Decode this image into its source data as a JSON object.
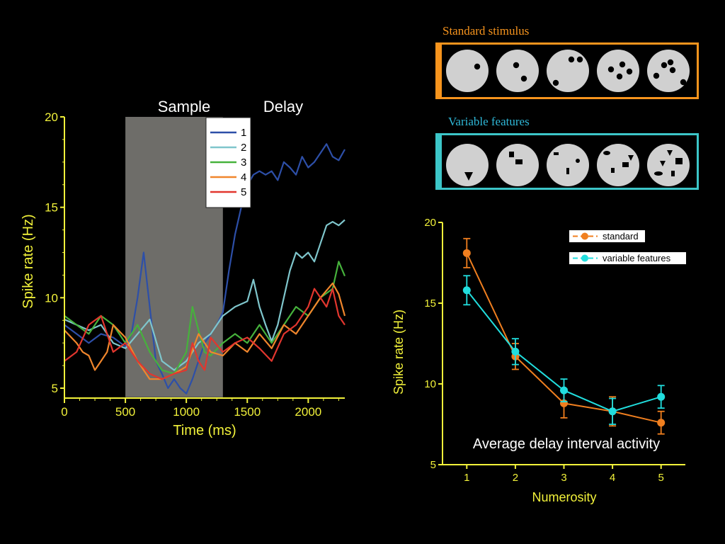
{
  "panels": {
    "standard": {
      "title": "Standard stimulus",
      "border_color": "#f7941d",
      "title_color": "#f7941d"
    },
    "variable": {
      "title": "Variable features",
      "border_color": "#3cc6c8",
      "title_color": "#2fb8d8"
    },
    "disc_color": "#d0d0d0"
  },
  "chart_data": [
    {
      "type": "line",
      "xlabel": "Time (ms)",
      "ylabel": "Spike rate (Hz)",
      "xlim": [
        0,
        2300
      ],
      "ylim": [
        4.5,
        20
      ],
      "xticks": [
        0,
        500,
        1000,
        1500,
        2000
      ],
      "yticks": [
        5,
        10,
        15,
        20
      ],
      "axis_color": "#f2f23a",
      "epochs": [
        {
          "label": "Sample",
          "start": 500,
          "end": 1300,
          "shaded": true,
          "shade_color": "#6e6d69"
        },
        {
          "label": "Delay",
          "start": 1300,
          "end": 2300,
          "shaded": false
        }
      ],
      "legend_position": "top-left-inside",
      "series": [
        {
          "name": "1",
          "color": "#2d4fa8",
          "x": [
            0,
            100,
            200,
            300,
            400,
            500,
            550,
            600,
            650,
            700,
            750,
            800,
            850,
            900,
            950,
            1000,
            1050,
            1100,
            1150,
            1200,
            1250,
            1300,
            1350,
            1400,
            1450,
            1500,
            1550,
            1600,
            1650,
            1700,
            1750,
            1800,
            1850,
            1900,
            1950,
            2000,
            2050,
            2100,
            2150,
            2200,
            2250,
            2300
          ],
          "y": [
            8.5,
            8.0,
            7.5,
            8.0,
            7.8,
            7.3,
            8.0,
            10.0,
            12.5,
            9.5,
            6.5,
            5.8,
            5.0,
            5.5,
            5.0,
            4.7,
            5.5,
            6.5,
            7.5,
            8.0,
            8.5,
            9.2,
            11.5,
            13.5,
            15.0,
            16.2,
            16.8,
            17.0,
            16.8,
            17.0,
            16.5,
            17.5,
            17.2,
            16.8,
            17.8,
            17.2,
            17.5,
            18.0,
            18.5,
            17.8,
            17.6,
            18.2
          ]
        },
        {
          "name": "2",
          "color": "#7fc6cc",
          "x": [
            0,
            100,
            200,
            300,
            400,
            500,
            600,
            700,
            800,
            900,
            1000,
            1100,
            1200,
            1300,
            1400,
            1500,
            1550,
            1600,
            1650,
            1700,
            1750,
            1800,
            1850,
            1900,
            1950,
            2000,
            2050,
            2100,
            2150,
            2200,
            2250,
            2300
          ],
          "y": [
            8.8,
            8.5,
            8.2,
            8.5,
            7.5,
            7.2,
            8.0,
            8.8,
            6.5,
            6.0,
            6.5,
            7.5,
            8.0,
            9.0,
            9.5,
            9.8,
            11.0,
            9.5,
            8.5,
            7.6,
            8.5,
            10.0,
            11.5,
            12.5,
            12.2,
            12.5,
            12.0,
            13.0,
            14.0,
            14.2,
            14.0,
            14.3
          ]
        },
        {
          "name": "3",
          "color": "#46b23c",
          "x": [
            0,
            100,
            200,
            300,
            400,
            500,
            600,
            700,
            800,
            900,
            1000,
            1050,
            1100,
            1150,
            1200,
            1300,
            1400,
            1500,
            1600,
            1700,
            1800,
            1900,
            2000,
            2100,
            2200,
            2250,
            2300
          ],
          "y": [
            9.0,
            8.5,
            8.0,
            9.0,
            8.5,
            7.5,
            8.5,
            7.0,
            6.0,
            5.8,
            7.0,
            9.5,
            8.2,
            7.0,
            6.8,
            7.5,
            8.0,
            7.5,
            8.5,
            7.5,
            8.5,
            9.5,
            9.0,
            10.0,
            10.5,
            12.0,
            11.2
          ]
        },
        {
          "name": "4",
          "color": "#f0862c",
          "x": [
            0,
            100,
            150,
            200,
            250,
            300,
            350,
            400,
            500,
            600,
            700,
            800,
            900,
            1000,
            1100,
            1200,
            1300,
            1400,
            1500,
            1600,
            1700,
            1800,
            1900,
            2000,
            2100,
            2200,
            2250,
            2300
          ],
          "y": [
            8.2,
            7.5,
            7.0,
            6.8,
            6.0,
            6.5,
            7.0,
            8.5,
            7.8,
            6.5,
            5.5,
            5.5,
            5.8,
            6.2,
            8.0,
            7.0,
            6.8,
            7.5,
            7.0,
            8.0,
            7.2,
            8.5,
            8.0,
            9.0,
            10.0,
            10.8,
            10.2,
            9.0
          ]
        },
        {
          "name": "5",
          "color": "#e2362e",
          "x": [
            0,
            100,
            200,
            300,
            400,
            500,
            600,
            700,
            800,
            900,
            1000,
            1050,
            1100,
            1150,
            1200,
            1300,
            1400,
            1500,
            1600,
            1700,
            1800,
            1900,
            2000,
            2050,
            2100,
            2150,
            2200,
            2250,
            2300
          ],
          "y": [
            6.5,
            7.0,
            8.5,
            9.0,
            7.0,
            7.5,
            6.5,
            5.8,
            5.5,
            5.8,
            6.0,
            7.5,
            6.5,
            6.0,
            7.8,
            7.0,
            7.5,
            7.8,
            7.2,
            6.5,
            8.0,
            8.5,
            9.5,
            10.5,
            10.0,
            9.5,
            10.5,
            9.0,
            8.5
          ]
        }
      ]
    },
    {
      "type": "line",
      "title": "Average delay interval activity",
      "xlabel": "Numerosity",
      "ylabel": "Spike rate (Hz)",
      "xlim": [
        0.5,
        5.5
      ],
      "ylim": [
        5,
        20
      ],
      "xticks": [
        1,
        2,
        3,
        4,
        5
      ],
      "yticks": [
        5,
        10,
        15,
        20
      ],
      "axis_color": "#f2f23a",
      "legend_position": "top-right",
      "series": [
        {
          "name": "standard",
          "color": "#f07f1f",
          "x": [
            1,
            2,
            3,
            4,
            5
          ],
          "y": [
            18.1,
            11.7,
            8.8,
            8.3,
            7.6
          ],
          "err": [
            0.9,
            0.8,
            0.9,
            0.9,
            0.7
          ]
        },
        {
          "name": "variable features",
          "color": "#21dede",
          "x": [
            1,
            2,
            3,
            4,
            5
          ],
          "y": [
            15.8,
            12.0,
            9.6,
            8.3,
            9.2
          ],
          "err": [
            0.9,
            0.8,
            0.7,
            0.8,
            0.7
          ]
        }
      ]
    }
  ]
}
